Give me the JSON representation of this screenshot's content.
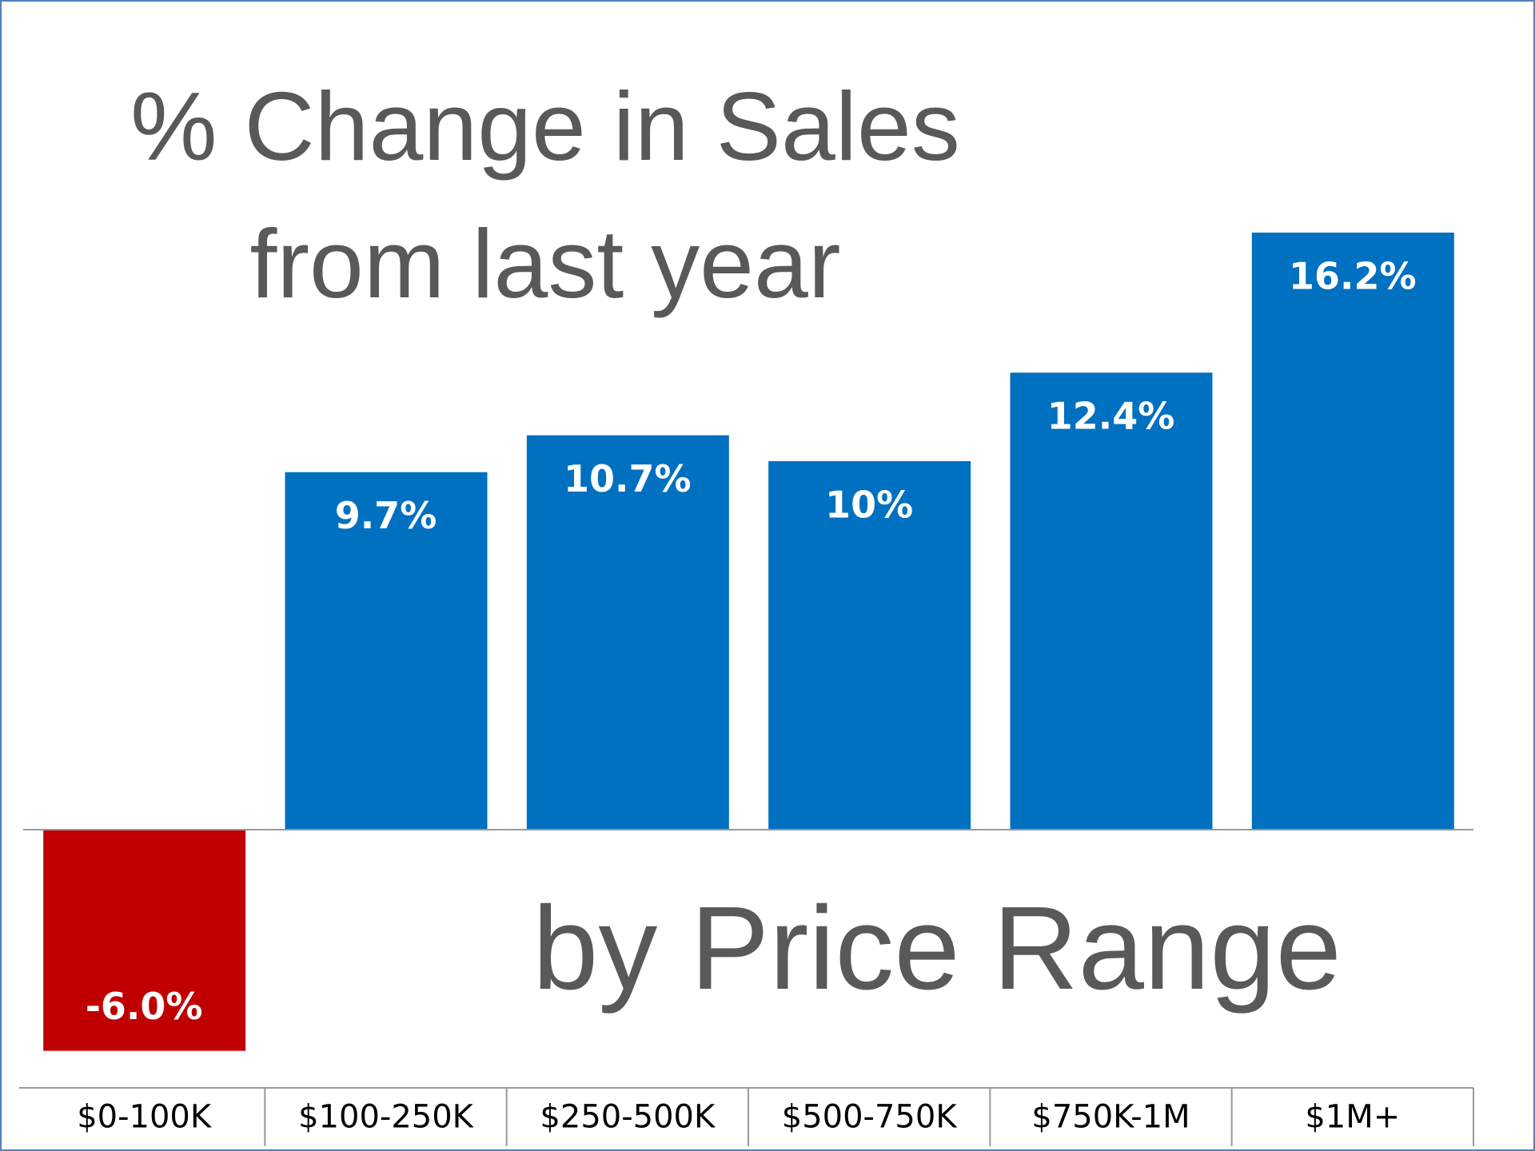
{
  "chart_data": {
    "type": "bar",
    "title": "% Change in Sales from last year",
    "subtitle": "by Price Range",
    "categories": [
      "$0-100K",
      "$100-250K",
      "$250-500K",
      "$500-750K",
      "$750K-1M",
      "$1M+"
    ],
    "values": [
      -6.0,
      9.7,
      10.7,
      10,
      12.4,
      16.2
    ],
    "value_labels": [
      "-6.0%",
      "9.7%",
      "10.7%",
      "10%",
      "12.4%",
      "16.2%"
    ],
    "colors": [
      "#c00000",
      "#0070c0",
      "#0070c0",
      "#0070c0",
      "#0070c0",
      "#0070c0"
    ]
  }
}
